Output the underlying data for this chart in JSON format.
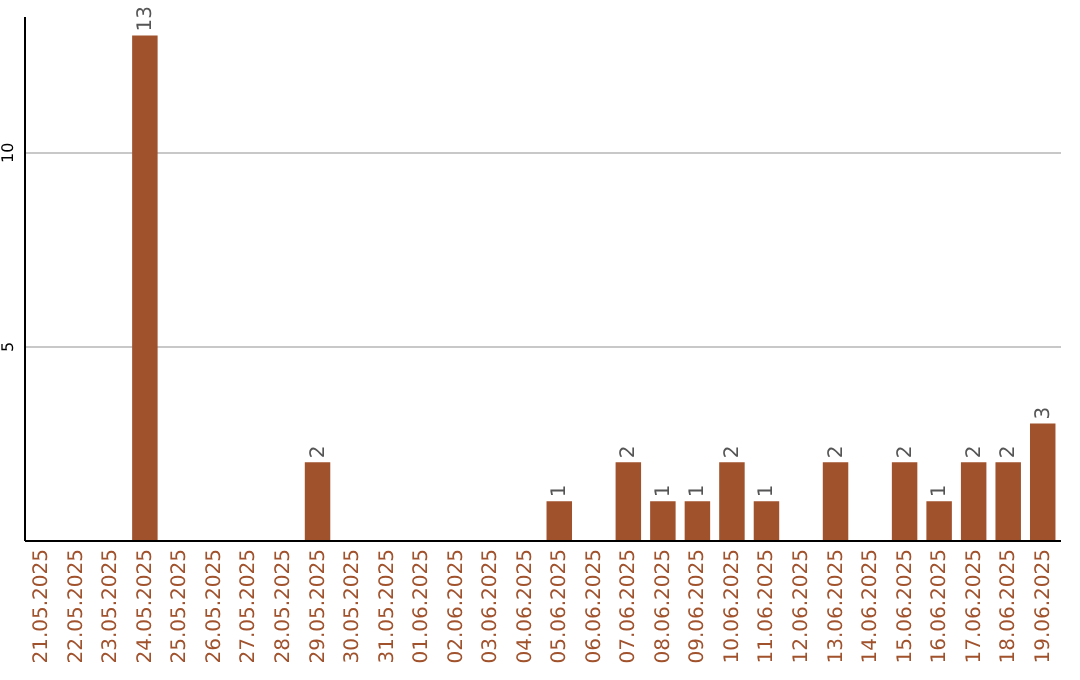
{
  "chart_data": {
    "type": "bar",
    "categories": [
      "21.05.2025",
      "22.05.2025",
      "23.05.2025",
      "24.05.2025",
      "25.05.2025",
      "26.05.2025",
      "27.05.2025",
      "28.05.2025",
      "29.05.2025",
      "30.05.2025",
      "31.05.2025",
      "01.06.2025",
      "02.06.2025",
      "03.06.2025",
      "04.06.2025",
      "05.06.2025",
      "06.06.2025",
      "07.06.2025",
      "08.06.2025",
      "09.06.2025",
      "10.06.2025",
      "11.06.2025",
      "12.06.2025",
      "13.06.2025",
      "14.06.2025",
      "15.06.2025",
      "16.06.2025",
      "17.06.2025",
      "18.06.2025",
      "19.06.2025"
    ],
    "values": [
      0,
      0,
      0,
      13,
      0,
      0,
      0,
      0,
      2,
      0,
      0,
      0,
      0,
      0,
      0,
      1,
      0,
      2,
      1,
      1,
      2,
      1,
      0,
      2,
      0,
      2,
      1,
      2,
      2,
      3
    ],
    "value_labels": [
      null,
      null,
      null,
      "13",
      null,
      null,
      null,
      null,
      "2",
      null,
      null,
      null,
      null,
      null,
      null,
      "1",
      null,
      "2",
      "1",
      "1",
      "2",
      "1",
      null,
      "2",
      null,
      "2",
      "1",
      "2",
      "2",
      "3"
    ],
    "color": "#a0522d",
    "ylim": [
      0,
      13.5
    ],
    "yticks": [
      5,
      10
    ],
    "grid": "y"
  }
}
